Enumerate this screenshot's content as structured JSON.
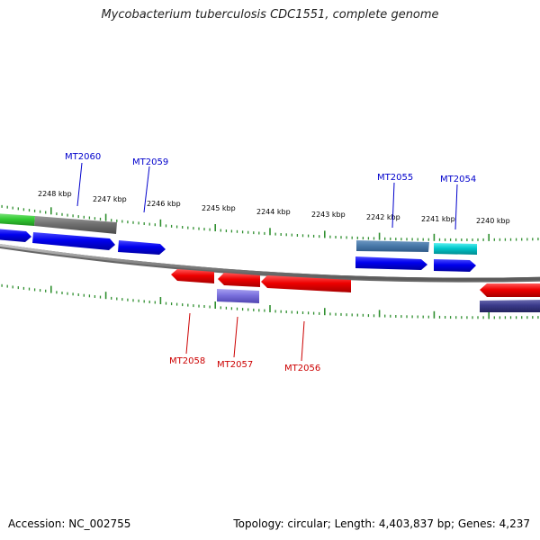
{
  "title": "Mycobacterium tuberculosis CDC1551, complete genome",
  "footer": {
    "accession": "Accession: NC_002755",
    "topology": "Topology: circular; Length: 4,403,837 bp; Genes: 4,237"
  },
  "colors": {
    "backbone": "#8a8a8a",
    "tick": "#2f8f2f",
    "forward_label": "#0000cc",
    "reverse_label": "#cc0000"
  },
  "ruler_labels": [
    "2248 kbp",
    "2247 kbp",
    "2246 kbp",
    "2245 kbp",
    "2244 kbp",
    "2243 kbp",
    "2242 kbp",
    "2241 kbp",
    "2240 kbp"
  ],
  "gene_labels": [
    {
      "id": "MT2060",
      "strand": "forward"
    },
    {
      "id": "MT2059",
      "strand": "forward"
    },
    {
      "id": "MT2055",
      "strand": "forward"
    },
    {
      "id": "MT2054",
      "strand": "forward"
    },
    {
      "id": "MT2058",
      "strand": "reverse"
    },
    {
      "id": "MT2057",
      "strand": "reverse"
    },
    {
      "id": "MT2056",
      "strand": "reverse"
    }
  ]
}
